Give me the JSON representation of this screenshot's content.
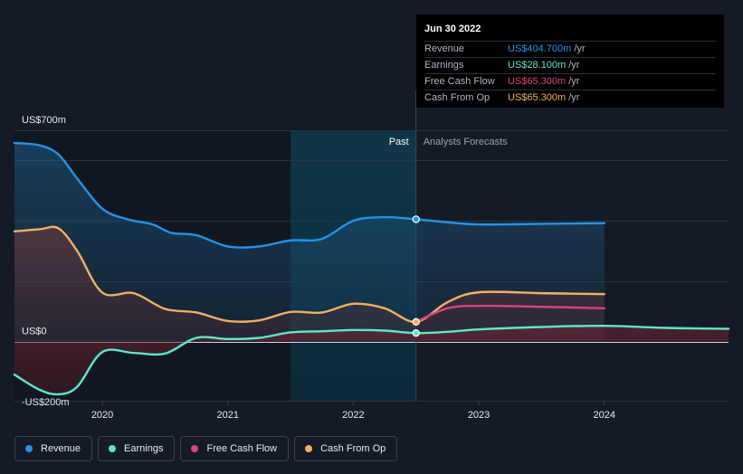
{
  "tooltip": {
    "date": "Jun 30 2022",
    "rows": [
      {
        "label": "Revenue",
        "value": "US$404.700m",
        "unit": "/yr",
        "color": "#2394e8"
      },
      {
        "label": "Earnings",
        "value": "US$28.100m",
        "unit": "/yr",
        "color": "#5ee6c9"
      },
      {
        "label": "Free Cash Flow",
        "value": "US$65.300m",
        "unit": "/yr",
        "color": "#d9447f"
      },
      {
        "label": "Cash From Op",
        "value": "US$65.300m",
        "unit": "/yr",
        "color": "#f0b060"
      }
    ]
  },
  "legend": [
    {
      "label": "Revenue",
      "color": "#2394e8"
    },
    {
      "label": "Earnings",
      "color": "#5ee6c9"
    },
    {
      "label": "Free Cash Flow",
      "color": "#d9447f"
    },
    {
      "label": "Cash From Op",
      "color": "#f0b060"
    }
  ],
  "chart_data": {
    "type": "line",
    "y_labels": [
      "US$700m",
      "US$0",
      "-US$200m"
    ],
    "ylim": [
      -200,
      700
    ],
    "y_gridlines": [
      700,
      600,
      400,
      200,
      0
    ],
    "x_ticks": [
      {
        "label": "2020",
        "x": 2020.0
      },
      {
        "label": "2021",
        "x": 2021.0
      },
      {
        "label": "2022",
        "x": 2022.0
      },
      {
        "label": "2023",
        "x": 2023.0
      },
      {
        "label": "2024",
        "x": 2024.0
      }
    ],
    "xlim": [
      2019.3,
      2024.99
    ],
    "past_label": "Past",
    "forecast_label": "Analysts Forecasts",
    "past_highlight_start": 2021.5,
    "divider_x": 2022.5,
    "series": [
      {
        "name": "Revenue",
        "color": "#2394e8",
        "fill": true,
        "points": [
          [
            2019.3,
            658
          ],
          [
            2019.5,
            650
          ],
          [
            2019.65,
            620
          ],
          [
            2019.8,
            540
          ],
          [
            2020.0,
            440
          ],
          [
            2020.2,
            405
          ],
          [
            2020.4,
            388
          ],
          [
            2020.55,
            360
          ],
          [
            2020.75,
            352
          ],
          [
            2021.0,
            315
          ],
          [
            2021.25,
            315
          ],
          [
            2021.5,
            335
          ],
          [
            2021.75,
            340
          ],
          [
            2022.0,
            400
          ],
          [
            2022.25,
            412
          ],
          [
            2022.5,
            405
          ],
          [
            2022.75,
            395
          ],
          [
            2023.0,
            388
          ],
          [
            2023.5,
            390
          ],
          [
            2024.0,
            392
          ]
        ],
        "marker": [
          2022.5,
          405
        ]
      },
      {
        "name": "Cash From Op",
        "color": "#f0b060",
        "fill": true,
        "points": [
          [
            2019.3,
            365
          ],
          [
            2019.5,
            372
          ],
          [
            2019.65,
            375
          ],
          [
            2019.8,
            300
          ],
          [
            2020.0,
            162
          ],
          [
            2020.25,
            160
          ],
          [
            2020.5,
            108
          ],
          [
            2020.75,
            96
          ],
          [
            2021.0,
            68
          ],
          [
            2021.25,
            70
          ],
          [
            2021.5,
            98
          ],
          [
            2021.75,
            96
          ],
          [
            2022.0,
            125
          ],
          [
            2022.25,
            110
          ],
          [
            2022.5,
            65
          ],
          [
            2022.75,
            130
          ],
          [
            2023.0,
            163
          ],
          [
            2023.5,
            160
          ],
          [
            2024.0,
            157
          ]
        ],
        "marker": [
          2022.5,
          65
        ]
      },
      {
        "name": "Free Cash Flow",
        "color": "#d9447f",
        "fill": false,
        "points": [
          [
            2022.5,
            65
          ],
          [
            2022.75,
            110
          ],
          [
            2023.0,
            118
          ],
          [
            2023.5,
            115
          ],
          [
            2024.0,
            110
          ]
        ]
      },
      {
        "name": "Earnings",
        "color": "#5ee6c9",
        "fill": true,
        "points": [
          [
            2019.3,
            -110
          ],
          [
            2019.5,
            -160
          ],
          [
            2019.65,
            -175
          ],
          [
            2019.8,
            -150
          ],
          [
            2020.0,
            -35
          ],
          [
            2020.25,
            -38
          ],
          [
            2020.5,
            -40
          ],
          [
            2020.75,
            12
          ],
          [
            2021.0,
            8
          ],
          [
            2021.25,
            12
          ],
          [
            2021.5,
            30
          ],
          [
            2021.75,
            34
          ],
          [
            2022.0,
            38
          ],
          [
            2022.25,
            36
          ],
          [
            2022.5,
            28
          ],
          [
            2022.75,
            32
          ],
          [
            2023.0,
            40
          ],
          [
            2023.5,
            48
          ],
          [
            2024.0,
            52
          ],
          [
            2024.5,
            45
          ],
          [
            2024.99,
            42
          ]
        ],
        "marker": [
          2022.5,
          28
        ]
      }
    ]
  }
}
